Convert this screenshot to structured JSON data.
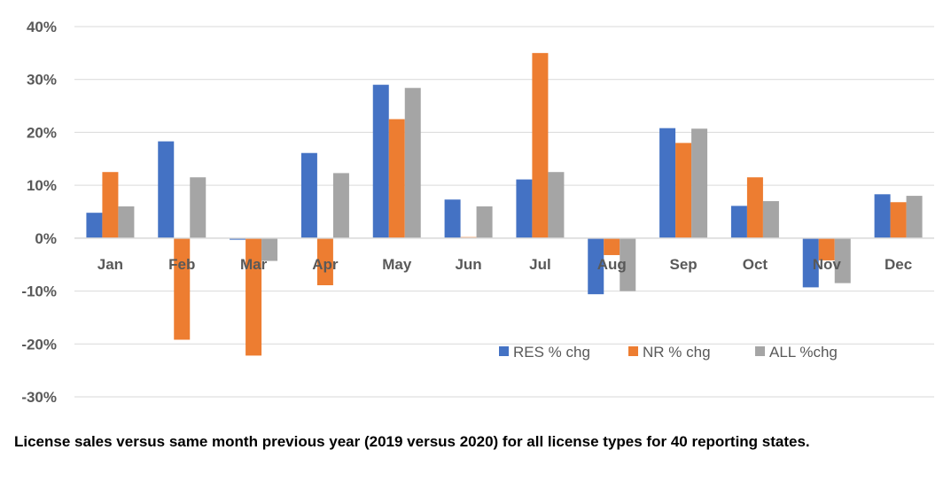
{
  "chart_data": {
    "type": "bar",
    "title": "",
    "xlabel": "",
    "ylabel": "",
    "ylim": [
      -30,
      40
    ],
    "yticks": [
      40,
      30,
      20,
      10,
      0,
      -10,
      -20,
      -30
    ],
    "ytick_labels": [
      "40%",
      "30%",
      "20%",
      "10%",
      "0%",
      "-10%",
      "-20%",
      "-30%"
    ],
    "grid": true,
    "legend_position": "bottom-right inside plot",
    "categories": [
      "Jan",
      "Feb",
      "Mar",
      "Apr",
      "May",
      "Jun",
      "Jul",
      "Aug",
      "Sep",
      "Oct",
      "Nov",
      "Dec"
    ],
    "series": [
      {
        "name": "RES % chg",
        "color": "#4472C4",
        "values": [
          4.8,
          18.3,
          -0.3,
          16.1,
          29.0,
          7.3,
          11.1,
          -10.6,
          20.8,
          6.1,
          -9.3,
          8.3
        ]
      },
      {
        "name": "NR % chg",
        "color": "#ED7D31",
        "values": [
          12.5,
          -19.2,
          -22.2,
          -8.9,
          22.5,
          0.2,
          35.0,
          -3.2,
          18.0,
          11.5,
          -4.2,
          6.8
        ]
      },
      {
        "name": "ALL %chg",
        "color": "#A5A5A5",
        "values": [
          6.0,
          11.5,
          -4.3,
          12.3,
          28.4,
          6.0,
          12.5,
          -10.0,
          20.7,
          7.0,
          -8.5,
          8.0
        ]
      }
    ]
  },
  "caption": "License sales versus same month previous year (2019 versus 2020) for all license types for 40 reporting states."
}
